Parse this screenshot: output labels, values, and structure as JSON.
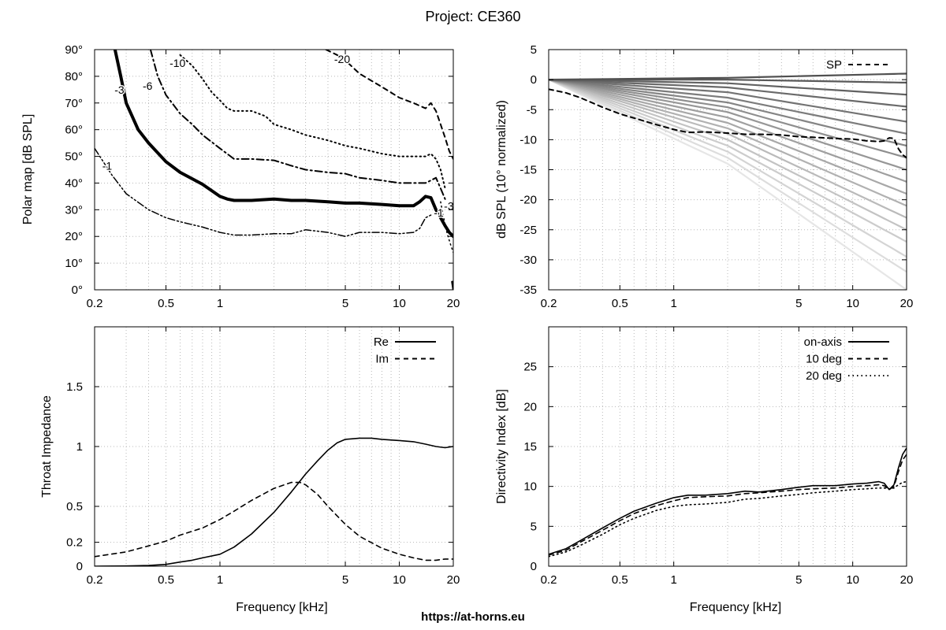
{
  "title": "Project: CE360",
  "footer": "https://at-horns.eu",
  "chart_data": [
    {
      "id": "polar",
      "type": "line",
      "chart_kind": "contour",
      "ylabel": "Polar map [dB SPL]",
      "xlabel": "",
      "xscale": "log",
      "xlim": [
        0.2,
        20
      ],
      "ylim": [
        0,
        90
      ],
      "xticks": [
        0.2,
        0.5,
        1,
        5,
        10,
        20
      ],
      "xtick_labels": [
        "0.2",
        "0.5",
        "1",
        "5",
        "10",
        "20"
      ],
      "yticks": [
        0,
        10,
        20,
        30,
        40,
        50,
        60,
        70,
        80,
        90
      ],
      "ytick_labels": [
        "0°",
        "10°",
        "20°",
        "30°",
        "40°",
        "50°",
        "60°",
        "70°",
        "80°",
        "90°"
      ],
      "grid": true,
      "series": [
        {
          "name": "-1",
          "style": "dash-dot-dot",
          "width": 1.5,
          "x": [
            0.2,
            0.25,
            0.3,
            0.4,
            0.5,
            0.6,
            0.8,
            1.0,
            1.2,
            1.5,
            2.0,
            2.5,
            3.0,
            4.0,
            5.0,
            6.0,
            8.0,
            10.0,
            12.0,
            13.0,
            14.0,
            15.0
          ],
          "y": [
            53,
            43,
            36,
            30,
            27,
            25.5,
            23.5,
            21.5,
            20.5,
            20.5,
            21,
            21,
            22.5,
            21.5,
            20,
            21.5,
            21.5,
            21,
            21.5,
            23,
            27,
            28
          ]
        },
        {
          "name": "-1",
          "style": "dotted",
          "width": 1.5,
          "x": [
            17.0,
            17.8,
            18.5,
            19.3,
            20.0
          ],
          "y": [
            33,
            26,
            21,
            17,
            14
          ]
        },
        {
          "name": "-3",
          "style": "solid",
          "width": 4,
          "x": [
            0.26,
            0.28,
            0.3,
            0.35,
            0.4,
            0.5,
            0.6,
            0.8,
            1.0,
            1.1,
            1.2,
            1.5,
            2.0,
            2.5,
            3.0,
            4.0,
            5.0,
            6.0,
            8.0,
            10.0,
            12.0,
            13.0,
            14.0,
            15.0,
            16.0,
            17.0,
            18.0,
            19.0,
            20.0
          ],
          "y": [
            90,
            80,
            70,
            60,
            55,
            48,
            44,
            39.5,
            35,
            34,
            33.5,
            33.5,
            34,
            33.5,
            33.5,
            33,
            32.5,
            32.5,
            32,
            31.5,
            31.5,
            33,
            35,
            34.5,
            30,
            27,
            24,
            21.5,
            20
          ]
        },
        {
          "name": "-3",
          "style": "solid",
          "width": 2.5,
          "x": [
            19.7,
            19.85,
            20.0
          ],
          "y": [
            3,
            1.5,
            0
          ]
        },
        {
          "name": "-6",
          "style": "dash-dot",
          "width": 2,
          "x": [
            0.41,
            0.45,
            0.5,
            0.6,
            0.7,
            0.8,
            1.0,
            1.2,
            1.5,
            2.0,
            2.5,
            3.0,
            4.0,
            5.0,
            6.0,
            8.0,
            10.0,
            12.0,
            14.0,
            15.0,
            16.0,
            17.0,
            18.0
          ],
          "y": [
            90,
            80,
            73,
            66,
            62,
            58,
            53,
            49,
            49,
            48.5,
            46.5,
            45,
            44,
            43.5,
            42,
            41,
            40,
            40,
            40,
            41,
            42,
            38,
            34
          ]
        },
        {
          "name": "-10",
          "style": "dotted",
          "width": 2,
          "x": [
            0.6,
            0.7,
            0.8,
            0.9,
            1.0,
            1.1,
            1.2,
            1.5,
            1.8,
            2.0,
            2.5,
            3.0,
            4.0,
            5.0,
            6.0,
            8.0,
            10.0,
            12.0,
            14.0,
            15.0,
            16.0,
            17.0,
            18.0
          ],
          "y": [
            88,
            84,
            79,
            74,
            71,
            68,
            67,
            67,
            65,
            62,
            60,
            58,
            56,
            54,
            53,
            51,
            50,
            50,
            50,
            51,
            49,
            45,
            38
          ]
        },
        {
          "name": "-20",
          "style": "dashed",
          "width": 2,
          "x": [
            3.9,
            4.5,
            5.0,
            6.0,
            8.0,
            10.0,
            12.0,
            14.0,
            15.0,
            16.0,
            17.0,
            18.0,
            19.0,
            20.0
          ],
          "y": [
            90,
            88,
            86,
            81,
            76,
            72,
            70,
            68,
            70,
            67,
            62,
            57,
            52,
            49
          ]
        }
      ],
      "annotations": [
        {
          "text": "-1",
          "x": 0.235,
          "y": 45
        },
        {
          "text": "-3",
          "x": 0.275,
          "y": 73.5
        },
        {
          "text": "-6",
          "x": 0.395,
          "y": 75
        },
        {
          "text": "-10",
          "x": 0.58,
          "y": 83.5
        },
        {
          "text": "-20",
          "x": 4.8,
          "y": 85
        },
        {
          "text": "-1",
          "x": 16.6,
          "y": 27.5
        },
        {
          "text": "-3",
          "x": 18.9,
          "y": 30
        }
      ]
    },
    {
      "id": "spl",
      "type": "line",
      "ylabel": "dB SPL (10° normalized)",
      "xlabel": "",
      "xscale": "log",
      "xlim": [
        0.2,
        20
      ],
      "ylim": [
        -35,
        5
      ],
      "xticks": [
        0.2,
        0.5,
        1,
        5,
        10,
        20
      ],
      "xtick_labels": [
        "0.2",
        "0.5",
        "1",
        "5",
        "10",
        "20"
      ],
      "yticks": [
        5,
        0,
        -5,
        -10,
        -15,
        -20,
        -25,
        -30,
        -35
      ],
      "ytick_labels": [
        "5",
        "0",
        "-5",
        "-10",
        "-15",
        "-20",
        "-25",
        "-30",
        "-35"
      ],
      "grid": true,
      "legend": {
        "position": "top-right",
        "entries": [
          "SP"
        ]
      },
      "sp_series": {
        "name": "SP",
        "x": [
          0.2,
          0.25,
          0.3,
          0.4,
          0.5,
          0.6,
          0.8,
          1.0,
          1.2,
          1.5,
          2.0,
          2.5,
          3.0,
          4.0,
          5.0,
          6.0,
          8.0,
          10.0,
          12.0,
          14.0,
          15.0,
          16.0,
          17.0,
          18.0,
          19.0,
          20.0
        ],
        "y": [
          -1.6,
          -2.2,
          -3.0,
          -4.6,
          -5.7,
          -6.4,
          -7.5,
          -8.3,
          -8.8,
          -8.7,
          -8.9,
          -9.1,
          -9.1,
          -9.2,
          -9.5,
          -9.6,
          -9.8,
          -9.9,
          -10.2,
          -10.3,
          -10.2,
          -9.7,
          -9.8,
          -11.5,
          -12.5,
          -13.0
        ]
      },
      "angle_curves": {
        "count": 18,
        "angles_deg": [
          5,
          10,
          15,
          20,
          25,
          30,
          35,
          40,
          45,
          50,
          55,
          60,
          65,
          70,
          75,
          80,
          85,
          90
        ],
        "x": [
          0.2,
          0.3,
          0.5,
          0.8,
          1.2,
          2.0,
          3.0,
          5.0,
          8.0,
          12.0,
          14.0,
          15.0,
          16.0,
          17.0,
          18.0,
          19.0,
          20.0
        ],
        "profile_y": [
          0.0,
          -0.07,
          -0.14,
          -0.24,
          -0.31,
          -0.4,
          -0.47,
          -0.56,
          -0.64,
          -0.72,
          -0.78,
          -0.82,
          -0.86,
          -0.91,
          -0.95,
          -0.98,
          -1.0
        ],
        "at_20k_y": [
          1.0,
          -0.5,
          -2.5,
          -4.5,
          -7.0,
          -9.0,
          -11.0,
          -13.0,
          -15.0,
          -17.0,
          -19.0,
          -21.0,
          -23.0,
          -25.0,
          -27.0,
          -29.5,
          -32.0,
          -35.0
        ],
        "at_2k_y": [
          0.3,
          0.0,
          -0.6,
          -1.3,
          -2.1,
          -3.0,
          -3.8,
          -4.6,
          -5.4,
          -6.3,
          -7.2,
          -8.1,
          -9.0,
          -10.0,
          -11.0,
          -12.0,
          -13.0,
          -14.0
        ]
      }
    },
    {
      "id": "impedance",
      "type": "line",
      "ylabel": "Throat Impedance",
      "xlabel": "Frequency [kHz]",
      "xscale": "log",
      "xlim": [
        0.2,
        20
      ],
      "ylim": [
        0,
        2
      ],
      "xticks": [
        0.2,
        0.5,
        1,
        5,
        10,
        20
      ],
      "xtick_labels": [
        "0.2",
        "0.5",
        "1",
        "5",
        "10",
        "20"
      ],
      "yticks": [
        0,
        0.2,
        0.5,
        1,
        1.5
      ],
      "ytick_labels": [
        "0",
        "0.2",
        "0.5",
        "1",
        "1.5"
      ],
      "grid": true,
      "legend": {
        "position": "top-right",
        "entries": [
          "Re",
          "Im"
        ]
      },
      "series": [
        {
          "name": "Re",
          "style": "solid",
          "x": [
            0.2,
            0.3,
            0.4,
            0.5,
            0.6,
            0.7,
            0.8,
            1.0,
            1.2,
            1.5,
            2.0,
            2.5,
            3.0,
            3.5,
            4.0,
            4.5,
            5.0,
            6.0,
            7.0,
            8.0,
            10.0,
            12.0,
            14.0,
            16.0,
            18.0,
            20.0
          ],
          "y": [
            0.0,
            0.002,
            0.006,
            0.015,
            0.035,
            0.05,
            0.07,
            0.1,
            0.16,
            0.27,
            0.45,
            0.62,
            0.77,
            0.88,
            0.97,
            1.03,
            1.06,
            1.07,
            1.07,
            1.06,
            1.05,
            1.04,
            1.02,
            1.0,
            0.99,
            1.0
          ]
        },
        {
          "name": "Im",
          "style": "dashed",
          "x": [
            0.2,
            0.3,
            0.4,
            0.5,
            0.6,
            0.8,
            1.0,
            1.2,
            1.5,
            2.0,
            2.5,
            2.8,
            3.0,
            3.5,
            4.0,
            5.0,
            6.0,
            8.0,
            10.0,
            12.0,
            14.0,
            16.0,
            18.0,
            20.0
          ],
          "y": [
            0.08,
            0.12,
            0.17,
            0.21,
            0.26,
            0.32,
            0.39,
            0.46,
            0.55,
            0.65,
            0.7,
            0.7,
            0.68,
            0.6,
            0.5,
            0.35,
            0.25,
            0.15,
            0.1,
            0.07,
            0.05,
            0.05,
            0.06,
            0.06
          ]
        }
      ]
    },
    {
      "id": "directivity",
      "type": "line",
      "ylabel": "Directivity Index [dB]",
      "xlabel": "Frequency [kHz]",
      "xscale": "log",
      "xlim": [
        0.2,
        20
      ],
      "ylim": [
        0,
        30
      ],
      "xticks": [
        0.2,
        0.5,
        1,
        5,
        10,
        20
      ],
      "xtick_labels": [
        "0.2",
        "0.5",
        "1",
        "5",
        "10",
        "20"
      ],
      "yticks": [
        0,
        5,
        10,
        15,
        20,
        25
      ],
      "ytick_labels": [
        "0",
        "5",
        "10",
        "15",
        "20",
        "25"
      ],
      "grid": true,
      "legend": {
        "position": "top-right",
        "entries": [
          "on-axis",
          "10 deg",
          "20 deg"
        ]
      },
      "series": [
        {
          "name": "on-axis",
          "style": "solid",
          "x": [
            0.2,
            0.25,
            0.3,
            0.4,
            0.5,
            0.6,
            0.8,
            1.0,
            1.2,
            1.5,
            2.0,
            2.5,
            3.0,
            4.0,
            5.0,
            6.0,
            8.0,
            10.0,
            12.0,
            14.0,
            15.0,
            16.0,
            17.0,
            18.0,
            19.0,
            20.0
          ],
          "y": [
            1.5,
            2.2,
            3.2,
            4.8,
            6.0,
            6.9,
            7.9,
            8.6,
            8.9,
            8.9,
            9.1,
            9.4,
            9.3,
            9.6,
            9.9,
            10.1,
            10.1,
            10.3,
            10.4,
            10.6,
            10.4,
            9.6,
            10.2,
            12.3,
            14.0,
            14.8
          ]
        },
        {
          "name": "10 deg",
          "style": "dashed",
          "x": [
            0.2,
            0.25,
            0.3,
            0.4,
            0.5,
            0.6,
            0.8,
            1.0,
            1.2,
            1.5,
            2.0,
            2.5,
            3.0,
            4.0,
            5.0,
            6.0,
            8.0,
            10.0,
            12.0,
            14.0,
            15.0,
            16.0,
            17.0,
            18.0,
            19.0,
            20.0
          ],
          "y": [
            1.4,
            2.0,
            3.0,
            4.5,
            5.7,
            6.6,
            7.6,
            8.2,
            8.6,
            8.7,
            8.8,
            9.1,
            9.2,
            9.4,
            9.6,
            9.7,
            9.8,
            10.0,
            10.1,
            10.2,
            10.1,
            9.6,
            10.0,
            11.8,
            13.3,
            14.0
          ]
        },
        {
          "name": "20 deg",
          "style": "dotted",
          "x": [
            0.2,
            0.25,
            0.3,
            0.4,
            0.5,
            0.6,
            0.8,
            1.0,
            1.2,
            1.5,
            2.0,
            2.5,
            3.0,
            4.0,
            5.0,
            6.0,
            8.0,
            10.0,
            12.0,
            14.0,
            15.0,
            16.0,
            17.0,
            18.0,
            19.0,
            20.0
          ],
          "y": [
            1.2,
            1.8,
            2.6,
            4.0,
            5.2,
            6.0,
            7.0,
            7.5,
            7.7,
            7.8,
            8.0,
            8.4,
            8.5,
            8.8,
            9.0,
            9.2,
            9.4,
            9.6,
            9.7,
            9.8,
            9.8,
            9.7,
            9.8,
            10.2,
            10.5,
            10.6
          ]
        }
      ]
    }
  ]
}
